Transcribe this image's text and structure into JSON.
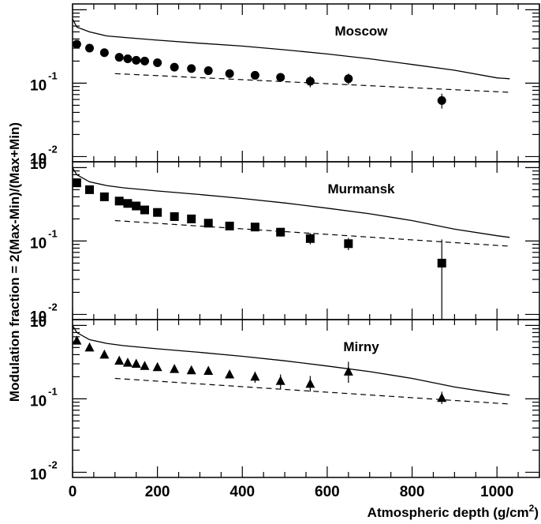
{
  "chart_data": [
    {
      "type": "scatter",
      "title": "Moscow",
      "marker": "circle",
      "y_scale": "log",
      "ylim": [
        0.0085,
        1.2
      ],
      "xlim": [
        0,
        1100
      ],
      "points": [
        {
          "x": 10,
          "y": 0.34
        },
        {
          "x": 40,
          "y": 0.3
        },
        {
          "x": 75,
          "y": 0.26
        },
        {
          "x": 110,
          "y": 0.225
        },
        {
          "x": 130,
          "y": 0.215
        },
        {
          "x": 150,
          "y": 0.205
        },
        {
          "x": 170,
          "y": 0.2
        },
        {
          "x": 200,
          "y": 0.19
        },
        {
          "x": 240,
          "y": 0.165
        },
        {
          "x": 280,
          "y": 0.158
        },
        {
          "x": 320,
          "y": 0.148
        },
        {
          "x": 370,
          "y": 0.135
        },
        {
          "x": 430,
          "y": 0.128,
          "yerr": [
            0.121,
            0.135
          ]
        },
        {
          "x": 490,
          "y": 0.12,
          "yerr": [
            0.112,
            0.13
          ]
        },
        {
          "x": 560,
          "y": 0.106,
          "yerr": [
            0.088,
            0.125
          ]
        },
        {
          "x": 650,
          "y": 0.115,
          "yerr": [
            0.096,
            0.135
          ]
        },
        {
          "x": 870,
          "y": 0.058,
          "yerr": [
            0.045,
            0.072
          ]
        }
      ],
      "solid_curve": {
        "x": [
          0,
          10,
          40,
          80,
          120,
          200,
          300,
          400,
          500,
          600,
          700,
          800,
          900,
          1000,
          1030
        ],
        "y": [
          0.75,
          0.58,
          0.5,
          0.44,
          0.42,
          0.385,
          0.35,
          0.32,
          0.285,
          0.25,
          0.215,
          0.18,
          0.15,
          0.118,
          0.115
        ]
      },
      "dashed_curve": {
        "x": [
          100,
          1030
        ],
        "y": [
          0.135,
          0.075
        ]
      }
    },
    {
      "type": "scatter",
      "title": "Murmansk",
      "marker": "square",
      "y_scale": "log",
      "ylim": [
        0.0085,
        1.2
      ],
      "xlim": [
        0,
        1100
      ],
      "points": [
        {
          "x": 10,
          "y": 0.62
        },
        {
          "x": 40,
          "y": 0.5
        },
        {
          "x": 75,
          "y": 0.4
        },
        {
          "x": 110,
          "y": 0.35
        },
        {
          "x": 130,
          "y": 0.325
        },
        {
          "x": 150,
          "y": 0.3
        },
        {
          "x": 170,
          "y": 0.265
        },
        {
          "x": 200,
          "y": 0.245
        },
        {
          "x": 240,
          "y": 0.215
        },
        {
          "x": 280,
          "y": 0.2
        },
        {
          "x": 320,
          "y": 0.175
        },
        {
          "x": 370,
          "y": 0.16
        },
        {
          "x": 430,
          "y": 0.155,
          "yerr": [
            0.145,
            0.165
          ]
        },
        {
          "x": 490,
          "y": 0.132,
          "yerr": [
            0.115,
            0.148
          ]
        },
        {
          "x": 560,
          "y": 0.108,
          "yerr": [
            0.09,
            0.128
          ]
        },
        {
          "x": 650,
          "y": 0.092,
          "yerr": [
            0.075,
            0.11
          ]
        },
        {
          "x": 870,
          "y": 0.05,
          "yerr": [
            0.0085,
            0.105
          ]
        }
      ],
      "solid_curve": {
        "x": [
          0,
          10,
          40,
          80,
          120,
          200,
          300,
          400,
          500,
          600,
          700,
          800,
          900,
          1000,
          1030
        ],
        "y": [
          1.0,
          0.8,
          0.64,
          0.57,
          0.53,
          0.48,
          0.43,
          0.38,
          0.33,
          0.28,
          0.235,
          0.19,
          0.145,
          0.118,
          0.112
        ]
      },
      "dashed_curve": {
        "x": [
          100,
          1030
        ],
        "y": [
          0.19,
          0.085
        ]
      }
    },
    {
      "type": "scatter",
      "title": "Mirny",
      "marker": "triangle",
      "y_scale": "log",
      "ylim": [
        0.0085,
        1.2
      ],
      "xlim": [
        0,
        1100
      ],
      "points": [
        {
          "x": 10,
          "y": 0.62
        },
        {
          "x": 40,
          "y": 0.5
        },
        {
          "x": 75,
          "y": 0.4
        },
        {
          "x": 110,
          "y": 0.33
        },
        {
          "x": 130,
          "y": 0.31
        },
        {
          "x": 150,
          "y": 0.3
        },
        {
          "x": 170,
          "y": 0.28
        },
        {
          "x": 200,
          "y": 0.27
        },
        {
          "x": 240,
          "y": 0.255
        },
        {
          "x": 280,
          "y": 0.245
        },
        {
          "x": 320,
          "y": 0.24,
          "yerr": [
            0.22,
            0.26
          ]
        },
        {
          "x": 370,
          "y": 0.215,
          "yerr": [
            0.19,
            0.24
          ]
        },
        {
          "x": 430,
          "y": 0.2,
          "yerr": [
            0.165,
            0.235
          ]
        },
        {
          "x": 490,
          "y": 0.175,
          "yerr": [
            0.135,
            0.215
          ]
        },
        {
          "x": 560,
          "y": 0.16,
          "yerr": [
            0.125,
            0.205
          ]
        },
        {
          "x": 650,
          "y": 0.235,
          "yerr": [
            0.165,
            0.32
          ]
        },
        {
          "x": 870,
          "y": 0.103,
          "yerr": [
            0.085,
            0.125
          ]
        }
      ],
      "solid_curve": {
        "x": [
          0,
          10,
          40,
          80,
          120,
          200,
          300,
          400,
          500,
          600,
          700,
          800,
          900,
          1000,
          1030
        ],
        "y": [
          1.0,
          0.8,
          0.64,
          0.57,
          0.53,
          0.48,
          0.43,
          0.38,
          0.33,
          0.28,
          0.235,
          0.19,
          0.145,
          0.118,
          0.112
        ]
      },
      "dashed_curve": {
        "x": [
          100,
          1030
        ],
        "y": [
          0.19,
          0.085
        ]
      }
    }
  ],
  "axes": {
    "ylabel": "Modulation fraction = 2(Max-Min)/(Max+Min)",
    "xlabel": "Atmospheric depth (g/cm",
    "xlabel_sup": "2",
    "xlabel_end": ")",
    "xticks": [
      "0",
      "200",
      "400",
      "600",
      "800",
      "1000"
    ],
    "ytick_base": "10",
    "ytick_exp_upper": "-1",
    "ytick_exp_lower": "-2"
  }
}
